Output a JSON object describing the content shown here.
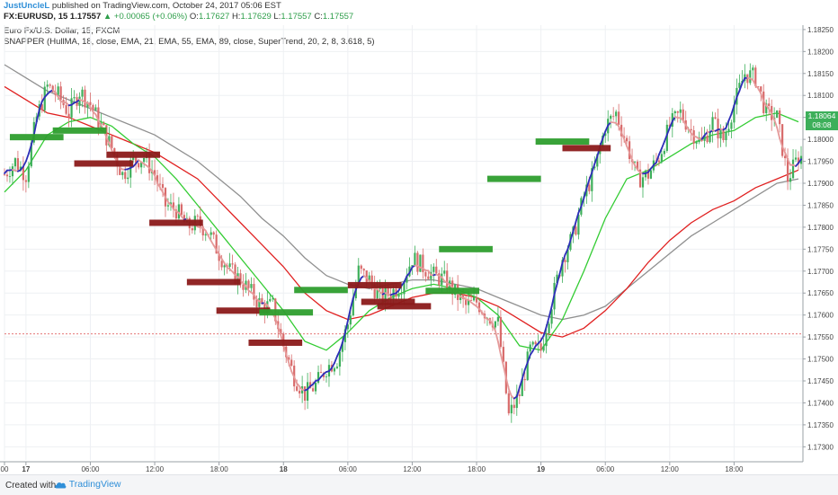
{
  "header": {
    "author": "JustUncleL",
    "published": "published on TradingView.com, October 24, 2017 05:06 EST",
    "symbol": "FX:EURUSD, 15",
    "last": "1.17557",
    "change": "▲ +0.00065 (+0.06%)",
    "ohlc_o_label": "O:",
    "ohlc_o": "1.17627",
    "ohlc_h_label": "H:",
    "ohlc_h": "1.17629",
    "ohlc_l_label": "L:",
    "ohlc_l": "1.17557",
    "ohlc_c_label": "C:",
    "ohlc_c": "1.17557",
    "instrument": "Euro Fx/U.S. Dollar, 15, FXCM",
    "indicator": "SNAPPER (HullMA, 18, close, EMA, 21, EMA, 55, EMA, 89, close, SuperTrend, 20, 2, 8, 3.618, 5)"
  },
  "price_tag": {
    "price": "1.18064",
    "time": "08:08"
  },
  "footer": {
    "created": "Created with",
    "brand": "TradingView"
  },
  "colors": {
    "up": "#3daf5a",
    "down": "#d86b6b",
    "hull_up": "#2e2eb8",
    "hull_down": "#e59a9a",
    "ema21": "#33cc33",
    "ema55": "#e02020",
    "ema89": "#909090",
    "box_green": "#2e9e2e",
    "box_red": "#8b1a1a"
  },
  "chart_data": {
    "type": "line",
    "title": "Euro Fx/U.S. Dollar, 15, FXCM",
    "xlabel": "",
    "ylabel": "",
    "ylim": [
      1.1727,
      1.1826
    ],
    "y_ticks": [
      "1.18250",
      "1.18200",
      "1.18150",
      "1.18100",
      "1.18050",
      "1.18000",
      "1.17950",
      "1.17900",
      "1.17850",
      "1.17800",
      "1.17750",
      "1.17700",
      "1.17650",
      "1.17600",
      "1.17550",
      "1.17500",
      "1.17450",
      "1.17400",
      "1.17350",
      "1.17300"
    ],
    "x_ticks": [
      {
        "label": "00",
        "t": 0
      },
      {
        "label": "17",
        "t": 8
      },
      {
        "label": "06:00",
        "t": 32
      },
      {
        "label": "12:00",
        "t": 56
      },
      {
        "label": "18:00",
        "t": 80
      },
      {
        "label": "18",
        "t": 104
      },
      {
        "label": "06:00",
        "t": 128
      },
      {
        "label": "12:00",
        "t": 152
      },
      {
        "label": "18:00",
        "t": 176
      },
      {
        "label": "19",
        "t": 200
      },
      {
        "label": "06:00",
        "t": 224
      },
      {
        "label": "12:00",
        "t": 248
      },
      {
        "label": "18:00",
        "t": 272
      }
    ],
    "t_max": 297,
    "current_price_line": 1.17557,
    "close": [
      [
        0,
        1.1792
      ],
      [
        4,
        1.1795
      ],
      [
        8,
        1.1792
      ],
      [
        12,
        1.1805
      ],
      [
        16,
        1.1812
      ],
      [
        20,
        1.181
      ],
      [
        24,
        1.1806
      ],
      [
        28,
        1.1811
      ],
      [
        32,
        1.1808
      ],
      [
        36,
        1.1803
      ],
      [
        40,
        1.1798
      ],
      [
        44,
        1.1792
      ],
      [
        48,
        1.1795
      ],
      [
        52,
        1.1796
      ],
      [
        56,
        1.1792
      ],
      [
        60,
        1.1785
      ],
      [
        64,
        1.1784
      ],
      [
        68,
        1.178
      ],
      [
        72,
        1.1781
      ],
      [
        76,
        1.1779
      ],
      [
        80,
        1.1774
      ],
      [
        84,
        1.177
      ],
      [
        88,
        1.1768
      ],
      [
        92,
        1.1765
      ],
      [
        96,
        1.1762
      ],
      [
        100,
        1.1762
      ],
      [
        104,
        1.1753
      ],
      [
        108,
        1.1746
      ],
      [
        112,
        1.1742
      ],
      [
        116,
        1.1744
      ],
      [
        120,
        1.1748
      ],
      [
        124,
        1.175
      ],
      [
        128,
        1.1758
      ],
      [
        132,
        1.177
      ],
      [
        136,
        1.1768
      ],
      [
        140,
        1.1764
      ],
      [
        144,
        1.1765
      ],
      [
        148,
        1.1767
      ],
      [
        152,
        1.1773
      ],
      [
        156,
        1.1771
      ],
      [
        160,
        1.1769
      ],
      [
        164,
        1.1768
      ],
      [
        168,
        1.1765
      ],
      [
        172,
        1.1762
      ],
      [
        176,
        1.1763
      ],
      [
        180,
        1.176
      ],
      [
        184,
        1.1758
      ],
      [
        188,
        1.1737
      ],
      [
        192,
        1.1742
      ],
      [
        196,
        1.1752
      ],
      [
        200,
        1.1752
      ],
      [
        204,
        1.1763
      ],
      [
        208,
        1.1773
      ],
      [
        212,
        1.1778
      ],
      [
        216,
        1.1787
      ],
      [
        220,
        1.1793
      ],
      [
        224,
        1.1803
      ],
      [
        228,
        1.1806
      ],
      [
        232,
        1.1799
      ],
      [
        236,
        1.1791
      ],
      [
        240,
        1.1792
      ],
      [
        244,
        1.1796
      ],
      [
        248,
        1.1803
      ],
      [
        252,
        1.1806
      ],
      [
        256,
        1.1802
      ],
      [
        260,
        1.1799
      ],
      [
        264,
        1.1804
      ],
      [
        268,
        1.18
      ],
      [
        272,
        1.1808
      ],
      [
        276,
        1.1815
      ],
      [
        280,
        1.1814
      ],
      [
        284,
        1.1806
      ],
      [
        288,
        1.1805
      ],
      [
        292,
        1.1791
      ],
      [
        296,
        1.1796
      ]
    ],
    "series": [
      {
        "key": "ema21",
        "points": [
          [
            0,
            1.1788
          ],
          [
            8,
            1.1793
          ],
          [
            16,
            1.1801
          ],
          [
            24,
            1.1804
          ],
          [
            32,
            1.1805
          ],
          [
            40,
            1.1803
          ],
          [
            48,
            1.1799
          ],
          [
            56,
            1.1796
          ],
          [
            64,
            1.1791
          ],
          [
            72,
            1.1785
          ],
          [
            80,
            1.1779
          ],
          [
            88,
            1.1773
          ],
          [
            96,
            1.1767
          ],
          [
            104,
            1.1761
          ],
          [
            112,
            1.1754
          ],
          [
            120,
            1.1752
          ],
          [
            128,
            1.1756
          ],
          [
            136,
            1.1761
          ],
          [
            144,
            1.1764
          ],
          [
            152,
            1.1766
          ],
          [
            160,
            1.1767
          ],
          [
            168,
            1.1766
          ],
          [
            176,
            1.1764
          ],
          [
            184,
            1.176
          ],
          [
            192,
            1.1753
          ],
          [
            200,
            1.1752
          ],
          [
            208,
            1.1759
          ],
          [
            216,
            1.177
          ],
          [
            224,
            1.1782
          ],
          [
            232,
            1.1791
          ],
          [
            240,
            1.1793
          ],
          [
            248,
            1.1796
          ],
          [
            256,
            1.1799
          ],
          [
            264,
            1.1801
          ],
          [
            272,
            1.1802
          ],
          [
            280,
            1.1805
          ],
          [
            288,
            1.1806
          ],
          [
            296,
            1.1804
          ]
        ]
      },
      {
        "key": "ema55",
        "points": [
          [
            0,
            1.1812
          ],
          [
            8,
            1.1809
          ],
          [
            16,
            1.1806
          ],
          [
            24,
            1.1805
          ],
          [
            32,
            1.1803
          ],
          [
            40,
            1.1801
          ],
          [
            48,
            1.1799
          ],
          [
            56,
            1.1797
          ],
          [
            64,
            1.1794
          ],
          [
            72,
            1.1791
          ],
          [
            80,
            1.1786
          ],
          [
            88,
            1.1781
          ],
          [
            96,
            1.1776
          ],
          [
            104,
            1.1771
          ],
          [
            112,
            1.1765
          ],
          [
            120,
            1.1761
          ],
          [
            128,
            1.1759
          ],
          [
            136,
            1.176
          ],
          [
            144,
            1.1762
          ],
          [
            152,
            1.1764
          ],
          [
            160,
            1.1765
          ],
          [
            168,
            1.1765
          ],
          [
            176,
            1.1764
          ],
          [
            184,
            1.1762
          ],
          [
            192,
            1.1759
          ],
          [
            200,
            1.1756
          ],
          [
            208,
            1.1755
          ],
          [
            216,
            1.1757
          ],
          [
            224,
            1.1761
          ],
          [
            232,
            1.1766
          ],
          [
            240,
            1.1772
          ],
          [
            248,
            1.1777
          ],
          [
            256,
            1.1781
          ],
          [
            264,
            1.1784
          ],
          [
            272,
            1.1786
          ],
          [
            280,
            1.1789
          ],
          [
            288,
            1.1791
          ],
          [
            296,
            1.1793
          ]
        ]
      },
      {
        "key": "ema89",
        "points": [
          [
            0,
            1.1817
          ],
          [
            8,
            1.1814
          ],
          [
            16,
            1.1811
          ],
          [
            24,
            1.1809
          ],
          [
            32,
            1.1807
          ],
          [
            40,
            1.1805
          ],
          [
            48,
            1.1803
          ],
          [
            56,
            1.1801
          ],
          [
            64,
            1.1798
          ],
          [
            72,
            1.1795
          ],
          [
            80,
            1.1791
          ],
          [
            88,
            1.1787
          ],
          [
            96,
            1.1782
          ],
          [
            104,
            1.1778
          ],
          [
            112,
            1.1773
          ],
          [
            120,
            1.1769
          ],
          [
            128,
            1.1767
          ],
          [
            136,
            1.1766
          ],
          [
            144,
            1.1767
          ],
          [
            152,
            1.1768
          ],
          [
            160,
            1.1768
          ],
          [
            168,
            1.1767
          ],
          [
            176,
            1.1766
          ],
          [
            184,
            1.1764
          ],
          [
            192,
            1.1762
          ],
          [
            200,
            1.176
          ],
          [
            208,
            1.1759
          ],
          [
            216,
            1.176
          ],
          [
            224,
            1.1762
          ],
          [
            232,
            1.1766
          ],
          [
            240,
            1.177
          ],
          [
            248,
            1.1774
          ],
          [
            256,
            1.1778
          ],
          [
            264,
            1.1781
          ],
          [
            272,
            1.1784
          ],
          [
            280,
            1.1787
          ],
          [
            288,
            1.179
          ],
          [
            296,
            1.1791
          ]
        ]
      }
    ],
    "supertrend_boxes": [
      {
        "t0": 2,
        "t1": 22,
        "y": 1.18005,
        "color": "green"
      },
      {
        "t0": 18,
        "t1": 38,
        "y": 1.1802,
        "color": "green"
      },
      {
        "t0": 26,
        "t1": 48,
        "y": 1.17945,
        "color": "red"
      },
      {
        "t0": 38,
        "t1": 58,
        "y": 1.17965,
        "color": "red"
      },
      {
        "t0": 54,
        "t1": 74,
        "y": 1.1781,
        "color": "red"
      },
      {
        "t0": 68,
        "t1": 88,
        "y": 1.17675,
        "color": "red"
      },
      {
        "t0": 79,
        "t1": 99,
        "y": 1.1761,
        "color": "red"
      },
      {
        "t0": 91,
        "t1": 111,
        "y": 1.17537,
        "color": "red"
      },
      {
        "t0": 95,
        "t1": 115,
        "y": 1.17606,
        "color": "green"
      },
      {
        "t0": 108,
        "t1": 128,
        "y": 1.17657,
        "color": "green"
      },
      {
        "t0": 128,
        "t1": 148,
        "y": 1.17668,
        "color": "red"
      },
      {
        "t0": 133,
        "t1": 153,
        "y": 1.1763,
        "color": "red"
      },
      {
        "t0": 139,
        "t1": 159,
        "y": 1.1762,
        "color": "red"
      },
      {
        "t0": 157,
        "t1": 177,
        "y": 1.17655,
        "color": "green"
      },
      {
        "t0": 162,
        "t1": 182,
        "y": 1.1775,
        "color": "green"
      },
      {
        "t0": 180,
        "t1": 200,
        "y": 1.1791,
        "color": "green"
      },
      {
        "t0": 198,
        "t1": 218,
        "y": 1.17995,
        "color": "green"
      },
      {
        "t0": 208,
        "t1": 226,
        "y": 1.1798,
        "color": "red"
      }
    ]
  }
}
